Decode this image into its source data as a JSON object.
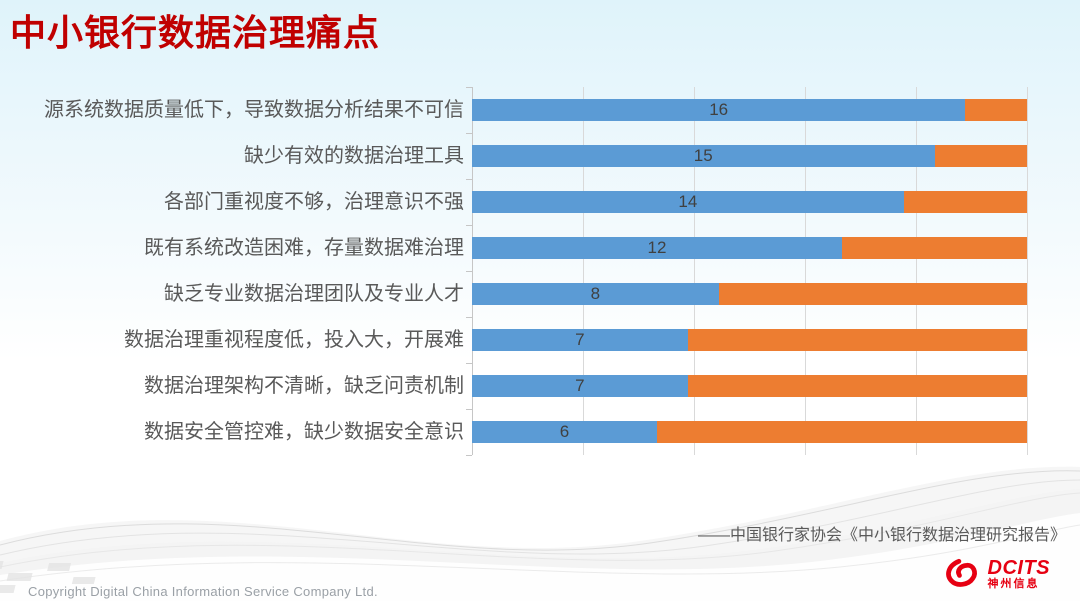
{
  "title": "中小银行数据治理痛点",
  "source": "——中国银行家协会《中小银行数据治理研究报告》",
  "footer": {
    "copyright": "Copyright  Digital China Information Service Company Ltd."
  },
  "logo": {
    "name": "DCITS",
    "subtitle": "神州信息"
  },
  "colors": {
    "title": "#c00000",
    "bar_blue": "#5b9bd5",
    "bar_orange": "#ed7d31",
    "category_label": "#595959",
    "value_label": "#404040",
    "gridline": "#d9d9d9",
    "axis": "#c6c6c6",
    "source_text": "#595959",
    "copyright_text": "#9aa0a6",
    "logo_red": "#e60012"
  },
  "chart_data": {
    "type": "bar",
    "orientation": "horizontal",
    "stacked": true,
    "stacked_total": 18,
    "title": "中小银行数据治理痛点",
    "categories": [
      "源系统数据质量低下，导致数据分析结果不可信",
      "缺少有效的数据治理工具",
      "各部门重视度不够，治理意识不强",
      "既有系统改造困难，存量数据难治理",
      "缺乏专业数据治理团队及专业人才",
      "数据治理重视程度低，投入大，开展难",
      "数据治理架构不清晰，缺乏问责机制",
      "数据安全管控难，缺少数据安全意识"
    ],
    "series": [
      {
        "name": "blue",
        "color": "#5b9bd5",
        "values": [
          16,
          15,
          14,
          12,
          8,
          7,
          7,
          6
        ]
      },
      {
        "name": "orange",
        "color": "#ed7d31",
        "values": [
          2,
          3,
          4,
          6,
          10,
          11,
          11,
          12
        ]
      }
    ],
    "value_labels": [
      "16",
      "15",
      "14",
      "12",
      "8",
      "7",
      "7",
      "6"
    ],
    "xlim_percent": [
      0,
      100
    ],
    "gridlines_percent": [
      0,
      20,
      40,
      60,
      80,
      100
    ],
    "grid": true,
    "legend": "none"
  }
}
